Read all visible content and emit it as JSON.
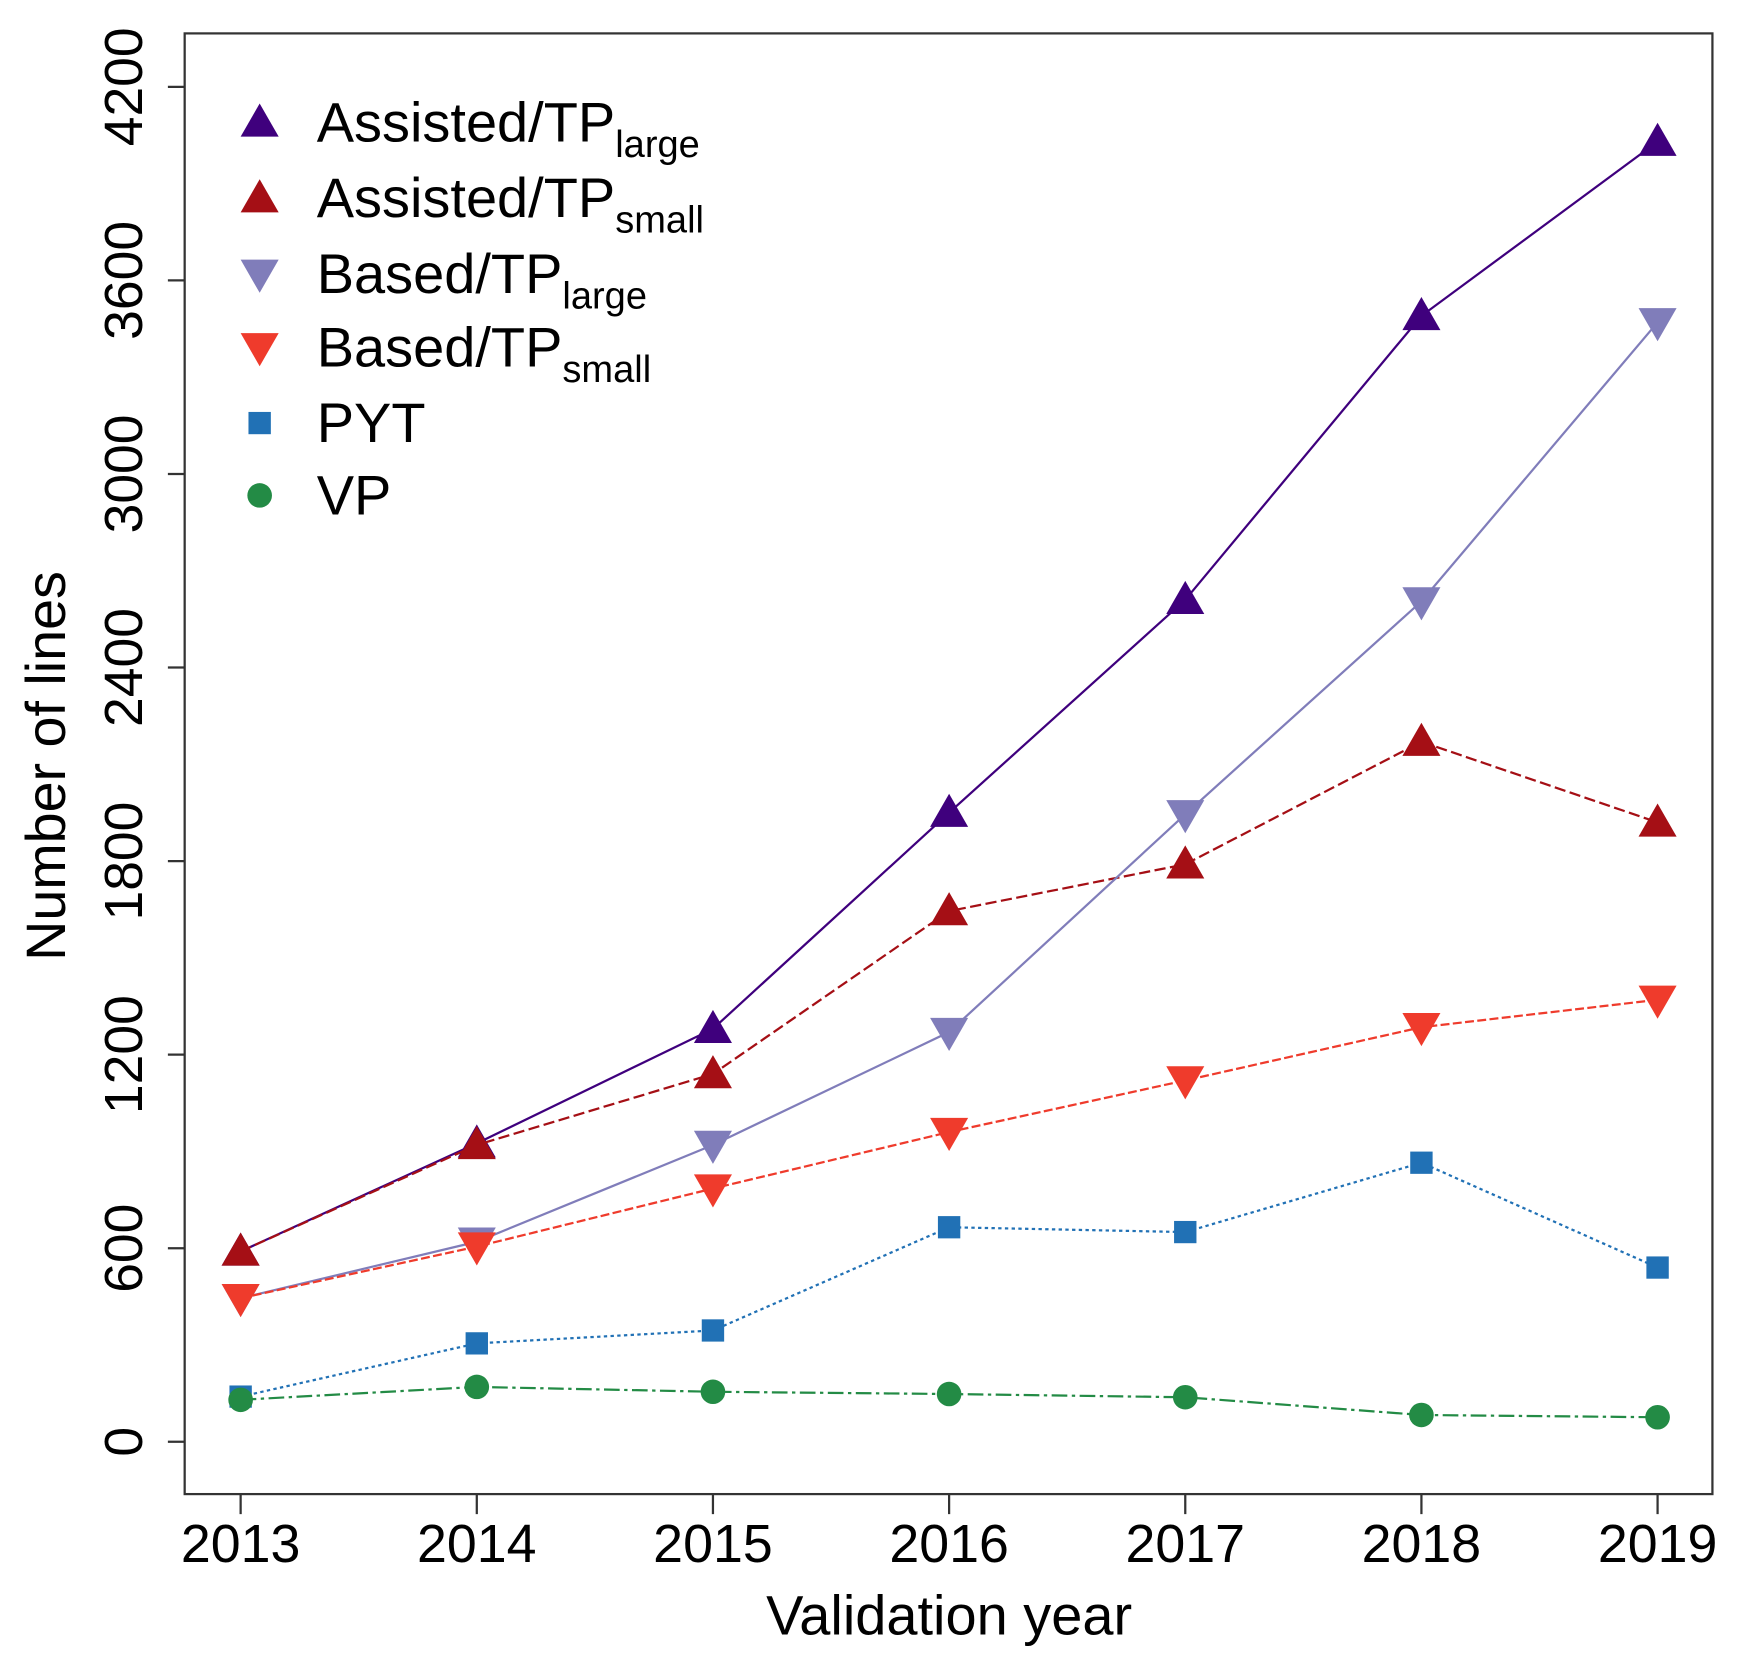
{
  "chart_data": {
    "type": "line",
    "title": "",
    "xlabel": "Validation year",
    "ylabel": "Number of lines",
    "x": [
      2013,
      2014,
      2015,
      2016,
      2017,
      2018,
      2019
    ],
    "xtick_labels": [
      "2013",
      "2014",
      "2015",
      "2016",
      "2017",
      "2018",
      "2019"
    ],
    "ylim": [
      0,
      4200
    ],
    "yticks": [
      0,
      600,
      1200,
      1800,
      2400,
      3000,
      3600,
      4200
    ],
    "ytick_labels": [
      "0",
      "600",
      "1200",
      "1800",
      "2400",
      "3000",
      "3600",
      "4200"
    ],
    "grid": false,
    "legend_placement": "top-left",
    "series": [
      {
        "name": "Assisted/TPlarge",
        "label_main": "Assisted/TP",
        "label_sub": "large",
        "color": "#3f007d",
        "marker": "triangle-up",
        "dash": "",
        "values": [
          590,
          925,
          1280,
          1950,
          2610,
          3490,
          4030
        ]
      },
      {
        "name": "Assisted/TPsmall",
        "label_main": "Assisted/TP",
        "label_sub": "small",
        "color": "#a50f15",
        "marker": "triangle-up",
        "dash": "10 4",
        "values": [
          590,
          920,
          1140,
          1645,
          1790,
          2170,
          1920
        ]
      },
      {
        "name": "Based/TPlarge",
        "label_main": "Based/TP",
        "label_sub": "large",
        "color": "#807dba",
        "marker": "triangle-down",
        "dash": "",
        "values": [
          445,
          620,
          920,
          1270,
          1945,
          2605,
          3470
        ]
      },
      {
        "name": "Based/TPsmall",
        "label_main": "Based/TP",
        "label_sub": "small",
        "color": "#ef3b2c",
        "marker": "triangle-down",
        "dash": "8 3",
        "values": [
          445,
          605,
          785,
          960,
          1120,
          1285,
          1370
        ]
      },
      {
        "name": "PYT",
        "label_main": "PYT",
        "label_sub": "",
        "color": "#2171b5",
        "marker": "square",
        "dash": "3 3",
        "values": [
          140,
          305,
          345,
          665,
          650,
          865,
          540
        ]
      },
      {
        "name": "VP",
        "label_main": "VP",
        "label_sub": "",
        "color": "#238b45",
        "marker": "circle",
        "dash": "14 4 3 4",
        "values": [
          130,
          170,
          155,
          148,
          138,
          83,
          76
        ]
      }
    ]
  }
}
